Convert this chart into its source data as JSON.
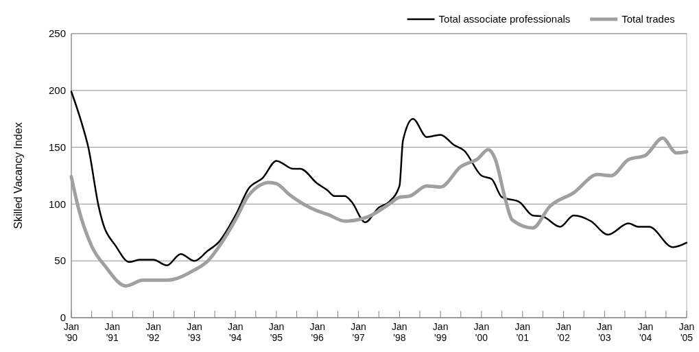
{
  "chart_data": {
    "type": "line",
    "ylabel": "Skilled Vacancy Index",
    "xlim": [
      "1990-01",
      "2005-01"
    ],
    "ylim": [
      0,
      250
    ],
    "yticks": [
      0,
      50,
      100,
      150,
      200,
      250
    ],
    "xticks": [
      {
        "value": "1990-01",
        "label": "Jan\n'90"
      },
      {
        "value": "1990-07",
        "label": null
      },
      {
        "value": "1991-01",
        "label": "Jan\n'91"
      },
      {
        "value": "1991-07",
        "label": null
      },
      {
        "value": "1992-01",
        "label": "Jan\n'92"
      },
      {
        "value": "1992-07",
        "label": null
      },
      {
        "value": "1993-01",
        "label": "Jan\n'93"
      },
      {
        "value": "1993-07",
        "label": null
      },
      {
        "value": "1994-01",
        "label": "Jan\n'94"
      },
      {
        "value": "1994-07",
        "label": null
      },
      {
        "value": "1995-01",
        "label": "Jan\n'95"
      },
      {
        "value": "1995-07",
        "label": null
      },
      {
        "value": "1996-01",
        "label": "Jan\n'96"
      },
      {
        "value": "1996-07",
        "label": null
      },
      {
        "value": "1997-01",
        "label": "Jan\n'97"
      },
      {
        "value": "1997-07",
        "label": null
      },
      {
        "value": "1998-01",
        "label": "Jan\n'98"
      },
      {
        "value": "1998-07",
        "label": null
      },
      {
        "value": "1999-01",
        "label": "Jan\n'99"
      },
      {
        "value": "1999-07",
        "label": null
      },
      {
        "value": "2000-01",
        "label": "Jan\n'00"
      },
      {
        "value": "2000-07",
        "label": null
      },
      {
        "value": "2001-01",
        "label": "Jan\n'01"
      },
      {
        "value": "2001-07",
        "label": null
      },
      {
        "value": "2002-01",
        "label": "Jan\n'02"
      },
      {
        "value": "2002-07",
        "label": null
      },
      {
        "value": "2003-01",
        "label": "Jan\n'03"
      },
      {
        "value": "2003-07",
        "label": null
      },
      {
        "value": "2004-01",
        "label": "Jan\n'04"
      },
      {
        "value": "2004-07",
        "label": null
      },
      {
        "value": "2005-01",
        "label": "Jan\n'05"
      }
    ],
    "grid": "y",
    "legend": "top right",
    "line_style": "solid",
    "series": [
      {
        "name": "Total associate professionals",
        "color": "#000000",
        "x": [
          "1990-01",
          "1990-04",
          "1990-06",
          "1990-09",
          "1990-10",
          "1991-02",
          "1991-06",
          "1991-09",
          "1992-01",
          "1992-05",
          "1992-09",
          "1993-01",
          "1993-05",
          "1993-08",
          "1994-01",
          "1994-05",
          "1994-09",
          "1995-01",
          "1995-06",
          "1995-08",
          "1996-01",
          "1996-04",
          "1996-06",
          "1996-09",
          "1996-11",
          "1997-03",
          "1997-07",
          "1997-10",
          "1998-01",
          "1998-02",
          "1998-05",
          "1998-09",
          "1999-01",
          "1999-05",
          "1999-08",
          "2000-01",
          "2000-04",
          "2000-07",
          "2000-12",
          "2001-04",
          "2001-07",
          "2001-12",
          "2002-04",
          "2002-09",
          "2003-02",
          "2003-08",
          "2003-11",
          "2004-02",
          "2004-09",
          "2005-01"
        ],
        "values": [
          199,
          172,
          150,
          98,
          86,
          63,
          49,
          51,
          51,
          46,
          56,
          50,
          59,
          66,
          90,
          114,
          123,
          138,
          131,
          131,
          118,
          112,
          107,
          107,
          102,
          84,
          97,
          102,
          116,
          156,
          175,
          159,
          161,
          152,
          147,
          125,
          122,
          106,
          102,
          90,
          89,
          80,
          90,
          85,
          73,
          83,
          80,
          80,
          62,
          66
        ]
      },
      {
        "name": "Total trades",
        "color": "#a0a0a0",
        "x": [
          "1990-01",
          "1990-03",
          "1990-07",
          "1990-11",
          "1991-05",
          "1991-10",
          "1992-05",
          "1993-01",
          "1993-05",
          "1993-09",
          "1994-01",
          "1994-05",
          "1994-11",
          "1995-01",
          "1995-05",
          "1996-01",
          "1996-04",
          "1996-09",
          "1997-04",
          "1997-10",
          "1998-01",
          "1998-04",
          "1998-09",
          "1999-01",
          "1999-07",
          "1999-12",
          "2000-03",
          "2000-05",
          "2000-08",
          "2000-10",
          "2001-04",
          "2001-09",
          "2002-04",
          "2002-11",
          "2003-03",
          "2003-08",
          "2004-01",
          "2004-06",
          "2004-10",
          "2005-01"
        ],
        "values": [
          124,
          98,
          63,
          45,
          28,
          33,
          33,
          42,
          50,
          66,
          86,
          108,
          119,
          118,
          108,
          94,
          91,
          85,
          89,
          100,
          106,
          107,
          116,
          115,
          133,
          140,
          148,
          140,
          104,
          86,
          79,
          98,
          110,
          126,
          125,
          139,
          143,
          158,
          145,
          146
        ]
      }
    ]
  }
}
